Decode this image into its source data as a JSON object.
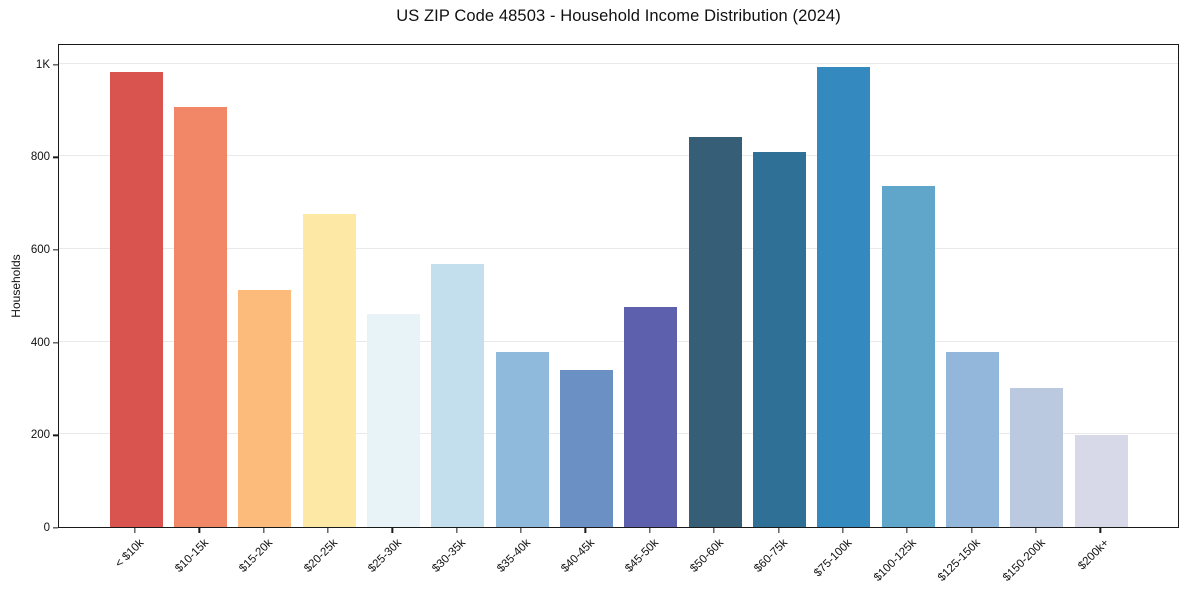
{
  "chart_data": {
    "type": "bar",
    "title": "US ZIP Code 48503 - Household Income Distribution (2024)",
    "xlabel": "",
    "ylabel": "Households",
    "ylim": [
      0,
      1045
    ],
    "grid": "horizontal",
    "legend": "none",
    "categories": [
      "< $10k",
      "$10-15k",
      "$15-20k",
      "$20-25k",
      "$25-30k",
      "$30-35k",
      "$35-40k",
      "$40-45k",
      "$45-50k",
      "$50-60k",
      "$60-75k",
      "$75-100k",
      "$100-125k",
      "$125-150k",
      "$150-200k",
      "$200k+"
    ],
    "values": [
      983,
      906,
      511,
      675,
      460,
      568,
      378,
      340,
      475,
      843,
      810,
      993,
      737,
      377,
      300,
      199
    ],
    "bar_colors": [
      "#d9544f",
      "#f28767",
      "#fcbb7b",
      "#fde8a6",
      "#e7f3f6",
      "#c3dfee",
      "#90badc",
      "#6b90c4",
      "#5d60ad",
      "#365f77",
      "#2f7196",
      "#3489bf",
      "#5fa6ca",
      "#93b7da",
      "#bac9e0",
      "#d8d9e8"
    ],
    "yticks": [
      {
        "value": 0,
        "label": "0"
      },
      {
        "value": 200,
        "label": "200"
      },
      {
        "value": 400,
        "label": "400"
      },
      {
        "value": 600,
        "label": "600"
      },
      {
        "value": 800,
        "label": "800"
      },
      {
        "value": 1000,
        "label": "1K"
      }
    ]
  },
  "colors": {
    "background": "#ffffff",
    "grid": "#e9e9e9",
    "spine": "#1a1a1a",
    "text": "#111111"
  }
}
